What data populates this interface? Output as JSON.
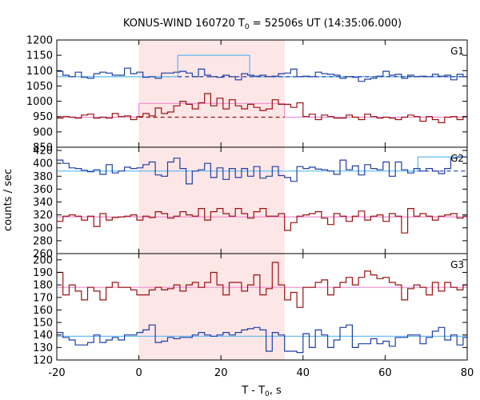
{
  "chart_data": {
    "type": "line",
    "title": "KONUS-WIND 160720 T",
    "title_sub": "0",
    "title_rest": " = 52506s UT (14:35:06.000)",
    "xlabel": "T - T",
    "xlabel_sub": "0",
    "xlabel_rest": ", s",
    "ylabel": "counts / sec",
    "xlim": [
      -20,
      80
    ],
    "xticks": [
      -20,
      0,
      20,
      40,
      60,
      80
    ],
    "shaded_interval": [
      0,
      35.5
    ],
    "shade_color": "#fde6e6",
    "colors": {
      "blue": "#1f3fa6",
      "red": "#9c1010",
      "cyan": "#5ab8f0",
      "pink": "#ee8fd0"
    },
    "bin_width": 1.5,
    "x_start": -20,
    "panels": [
      {
        "label": "G1",
        "ylim": [
          850,
          1200
        ],
        "yticks": [
          850,
          900,
          950,
          1000,
          1050,
          1100,
          1150,
          1200
        ],
        "series": [
          {
            "color": "blue",
            "values": [
              1098,
              1085,
              1080,
              1095,
              1078,
              1075,
              1090,
              1095,
              1092,
              1085,
              1085,
              1108,
              1090,
              1095,
              1078,
              1080,
              1075,
              1092,
              1092,
              1095,
              1098,
              1092,
              1080,
              1105,
              1085,
              1080,
              1078,
              1085,
              1080,
              1070,
              1090,
              1085,
              1082,
              1085,
              1080,
              1082,
              1090,
              1092,
              1105,
              1080,
              1082,
              1080,
              1095,
              1090,
              1088,
              1085,
              1075,
              1080,
              1078,
              1065,
              1072,
              1075,
              1082,
              1098,
              1085,
              1088,
              1075,
              1085,
              1080,
              1082,
              1080,
              1088,
              1082,
              1085,
              1070,
              1088,
              1080,
              1085,
              1060,
              1085
            ]
          },
          {
            "color": "red",
            "values": [
              945,
              950,
              948,
              945,
              955,
              958,
              945,
              948,
              945,
              960,
              950,
              952,
              940,
              950,
              960,
              952,
              978,
              960,
              965,
              985,
              1000,
              990,
              975,
              995,
              1025,
              985,
              1010,
              975,
              1005,
              985,
              975,
              990,
              980,
              970,
              975,
              1005,
              990,
              990,
              980,
              995,
              950,
              958,
              940,
              955,
              950,
              945,
              945,
              955,
              948,
              940,
              958,
              950,
              945,
              948,
              945,
              940,
              948,
              955,
              950,
              935,
              950,
              940,
              930,
              948,
              950,
              940,
              950,
              945,
              948,
              955
            ]
          }
        ],
        "levels": [
          {
            "color": "cyan",
            "style": "solid",
            "points": [
              [
                -20,
                1080
              ],
              [
                9.5,
                1080
              ],
              [
                9.5,
                1150
              ],
              [
                27,
                1150
              ],
              [
                27,
                1080
              ],
              [
                80,
                1080
              ]
            ]
          },
          {
            "color": "blue",
            "style": "dashed",
            "points": [
              [
                9.5,
                1080
              ],
              [
                80,
                1080
              ]
            ]
          },
          {
            "color": "pink",
            "style": "solid",
            "points": [
              [
                -20,
                948
              ],
              [
                0,
                948
              ],
              [
                0,
                993
              ],
              [
                35.5,
                993
              ],
              [
                35.5,
                948
              ],
              [
                80,
                948
              ]
            ]
          },
          {
            "color": "red",
            "style": "dashed",
            "points": [
              [
                0,
                948
              ],
              [
                35.5,
                948
              ]
            ]
          }
        ]
      },
      {
        "label": "G2",
        "ylim": [
          260,
          425
        ],
        "yticks": [
          260,
          280,
          300,
          320,
          340,
          360,
          380,
          400,
          420
        ],
        "series": [
          {
            "color": "blue",
            "values": [
              405,
              400,
              393,
              392,
              389,
              387,
              390,
              383,
              398,
              385,
              388,
              394,
              392,
              393,
              398,
              402,
              382,
              380,
              402,
              408,
              392,
              368,
              388,
              390,
              400,
              378,
              393,
              375,
              392,
              378,
              392,
              380,
              395,
              377,
              380,
              395,
              381,
              378,
              372,
              395,
              392,
              394,
              391,
              390,
              388,
              383,
              405,
              390,
              396,
              382,
              398,
              392,
              390,
              402,
              380,
              402,
              390,
              385,
              392,
              388,
              392,
              388,
              384,
              392,
              408,
              410,
              410,
              409,
              410,
              412
            ]
          },
          {
            "color": "red",
            "values": [
              310,
              318,
              320,
              318,
              312,
              318,
              302,
              322,
              312,
              316,
              317,
              318,
              320,
              312,
              318,
              316,
              325,
              322,
              315,
              318,
              325,
              320,
              318,
              330,
              312,
              325,
              330,
              322,
              318,
              330,
              322,
              315,
              325,
              330,
              318,
              318,
              322,
              296,
              308,
              318,
              320,
              322,
              325,
              315,
              305,
              322,
              318,
              310,
              318,
              326,
              312,
              318,
              320,
              310,
              322,
              318,
              292,
              330,
              318,
              322,
              318,
              312,
              318,
              320,
              322,
              315,
              318,
              302,
              315,
              318
            ]
          }
        ],
        "levels": [
          {
            "color": "cyan",
            "style": "solid",
            "points": [
              [
                -20,
                388
              ],
              [
                68,
                388
              ],
              [
                68,
                410
              ],
              [
                80,
                410
              ]
            ]
          },
          {
            "color": "blue",
            "style": "dashed",
            "points": [
              [
                68,
                388
              ],
              [
                80,
                388
              ]
            ]
          },
          {
            "color": "pink",
            "style": "solid",
            "points": [
              [
                -20,
                317
              ],
              [
                80,
                317
              ]
            ]
          }
        ]
      },
      {
        "label": "G3",
        "ylim": [
          120,
          205
        ],
        "yticks": [
          120,
          130,
          140,
          150,
          160,
          170,
          180,
          190,
          200
        ],
        "series": [
          {
            "color": "red",
            "values": [
              190,
              172,
              180,
              175,
              168,
              178,
              175,
              168,
              178,
              182,
              178,
              178,
              176,
              172,
              172,
              176,
              178,
              176,
              177,
              180,
              175,
              180,
              182,
              178,
              182,
              190,
              180,
              172,
              182,
              182,
              175,
              180,
              188,
              172,
              177,
              198,
              180,
              168,
              174,
              162,
              178,
              178,
              182,
              184,
              172,
              178,
              182,
              186,
              180,
              186,
              191,
              188,
              185,
              186,
              182,
              180,
              168,
              177,
              180,
              178,
              172,
              182,
              175,
              182,
              178,
              176,
              180,
              178,
              176,
              172
            ]
          },
          {
            "color": "blue",
            "values": [
              142,
              138,
              136,
              132,
              132,
              134,
              140,
              134,
              136,
              138,
              136,
              140,
              140,
              142,
              144,
              148,
              134,
              135,
              138,
              137,
              138,
              138,
              140,
              142,
              140,
              139,
              140,
              142,
              140,
              142,
              144,
              145,
              146,
              144,
              127,
              142,
              140,
              127,
              127,
              126,
              141,
              130,
              144,
              140,
              130,
              136,
              146,
              148,
              130,
              133,
              133,
              137,
              133,
              135,
              131,
              138,
              138,
              140,
              140,
              133,
              138,
              143,
              146,
              136,
              140,
              132,
              138,
              143,
              140,
              136
            ]
          }
        ],
        "levels": [
          {
            "color": "pink",
            "style": "solid",
            "points": [
              [
                -20,
                178
              ],
              [
                80,
                178
              ]
            ]
          },
          {
            "color": "cyan",
            "style": "solid",
            "points": [
              [
                -20,
                139
              ],
              [
                80,
                139
              ]
            ]
          }
        ]
      }
    ]
  }
}
